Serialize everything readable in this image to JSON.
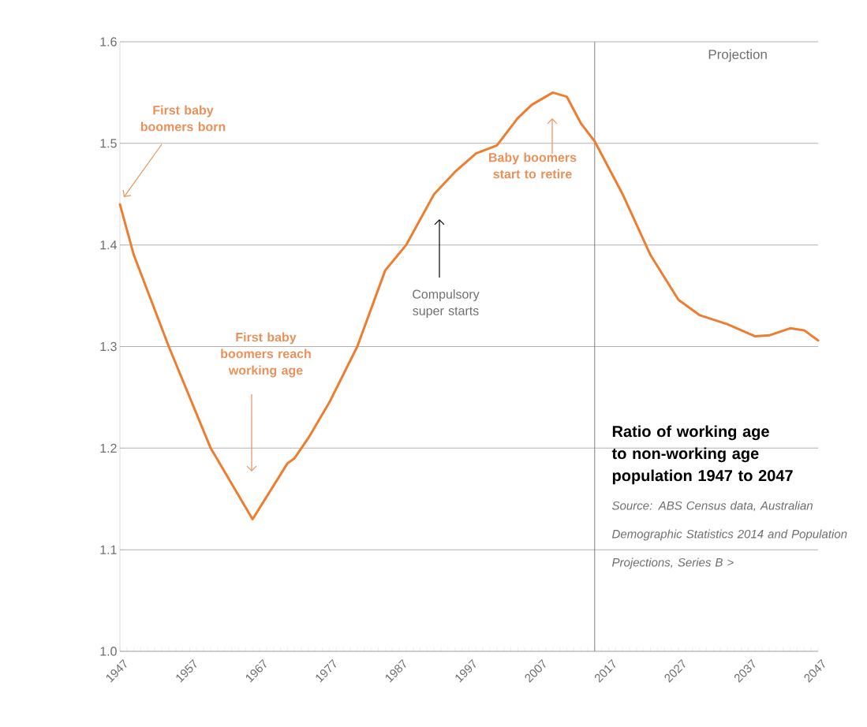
{
  "chart_data": {
    "type": "line",
    "title": "Ratio of working age to non-working age population 1947 to 2047",
    "x": [
      1947,
      1949,
      1954,
      1960,
      1966,
      1971,
      1972,
      1974,
      1977,
      1981,
      1985,
      1988,
      1992,
      1995,
      1998,
      2001,
      2004,
      2006,
      2009,
      2011,
      2013,
      2015,
      2019,
      2023,
      2027,
      2030,
      2034,
      2038,
      2040,
      2043,
      2045,
      2047
    ],
    "series": [
      {
        "color": "#ed7d31",
        "values": [
          1.44,
          1.39,
          1.3,
          1.2,
          1.13,
          1.185,
          1.19,
          1.21,
          1.245,
          1.3,
          1.375,
          1.4,
          1.45,
          1.472,
          1.49,
          1.498,
          1.525,
          1.538,
          1.55,
          1.546,
          1.52,
          1.502,
          1.45,
          1.39,
          1.346,
          1.331,
          1.322,
          1.31,
          1.311,
          1.318,
          1.316,
          1.306
        ]
      }
    ],
    "xlim": [
      1947,
      2047
    ],
    "xticks": [
      1947,
      1957,
      1967,
      1977,
      1987,
      1997,
      2007,
      2017,
      2027,
      2037,
      2047
    ],
    "ylim": [
      1.0,
      1.6
    ],
    "yticks": [
      {
        "value": 1.0,
        "label": "1.0"
      },
      {
        "value": 1.1,
        "label": "1.1"
      },
      {
        "value": 1.2,
        "label": "1.2"
      },
      {
        "value": 1.3,
        "label": "1.3"
      },
      {
        "value": 1.4,
        "label": "1.4"
      },
      {
        "value": 1.5,
        "label": "1.5"
      },
      {
        "value": 1.6,
        "label": "1.6"
      }
    ],
    "grid": "y",
    "marker": "none",
    "line_style": "solid",
    "ref_lines": [
      {
        "axis": "x",
        "value": 2015,
        "label": "Projection",
        "color": "#808080"
      }
    ],
    "annotations": [
      "First baby boomers born",
      "First baby boomers reach working age",
      "Compulsory super starts",
      "Baby boomers start to retire",
      "Source: ABS Census data, Australian Demographic Statistics 2014 and Population Projections, Series B >"
    ]
  }
}
